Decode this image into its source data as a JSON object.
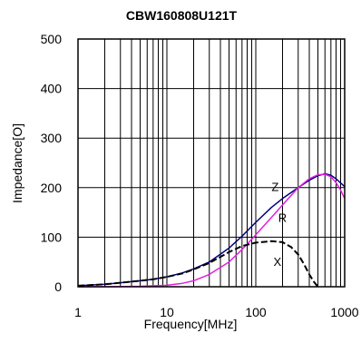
{
  "chart_data": {
    "type": "line",
    "title": "CBW160808U121T",
    "xlabel": "Frequency[MHz]",
    "ylabel": "Impedance[O]",
    "xscale": "log",
    "xlim": [
      1,
      1000
    ],
    "ylim": [
      0,
      500
    ],
    "xticks": [
      "1",
      "10",
      "100",
      "1000"
    ],
    "yticks": [
      "0",
      "100",
      "200",
      "300",
      "400",
      "500"
    ],
    "grid": true,
    "series": [
      {
        "name": "Z",
        "color": "#000080",
        "style": "solid",
        "x": [
          1,
          2,
          3,
          5,
          7,
          10,
          15,
          20,
          30,
          50,
          70,
          100,
          150,
          200,
          300,
          400,
          500,
          600,
          700,
          800,
          1000
        ],
        "y": [
          2,
          5,
          8,
          12,
          15,
          20,
          28,
          36,
          50,
          78,
          102,
          130,
          160,
          178,
          200,
          215,
          224,
          228,
          225,
          218,
          202
        ]
      },
      {
        "name": "R",
        "color": "#e020e0",
        "style": "solid",
        "x": [
          1,
          2,
          5,
          10,
          15,
          20,
          30,
          50,
          70,
          100,
          150,
          200,
          300,
          400,
          500,
          600,
          700,
          800,
          900,
          1000
        ],
        "y": [
          0,
          0,
          1,
          3,
          7,
          12,
          25,
          50,
          75,
          105,
          140,
          165,
          200,
          218,
          226,
          227,
          222,
          210,
          195,
          178
        ]
      },
      {
        "name": "X",
        "color": "#000000",
        "style": "dashed",
        "x": [
          1,
          2,
          3,
          5,
          7,
          10,
          15,
          20,
          30,
          50,
          70,
          100,
          150,
          200,
          250,
          300,
          350,
          400,
          450,
          500
        ],
        "y": [
          2,
          5,
          8,
          12,
          15,
          20,
          27,
          35,
          48,
          70,
          82,
          89,
          92,
          90,
          80,
          65,
          45,
          25,
          10,
          0
        ]
      }
    ],
    "labels": [
      {
        "text": "Z",
        "x": 165,
        "y": 193
      },
      {
        "text": "R",
        "x": 200,
        "y": 131
      },
      {
        "text": "X",
        "x": 175,
        "y": 42
      }
    ]
  }
}
